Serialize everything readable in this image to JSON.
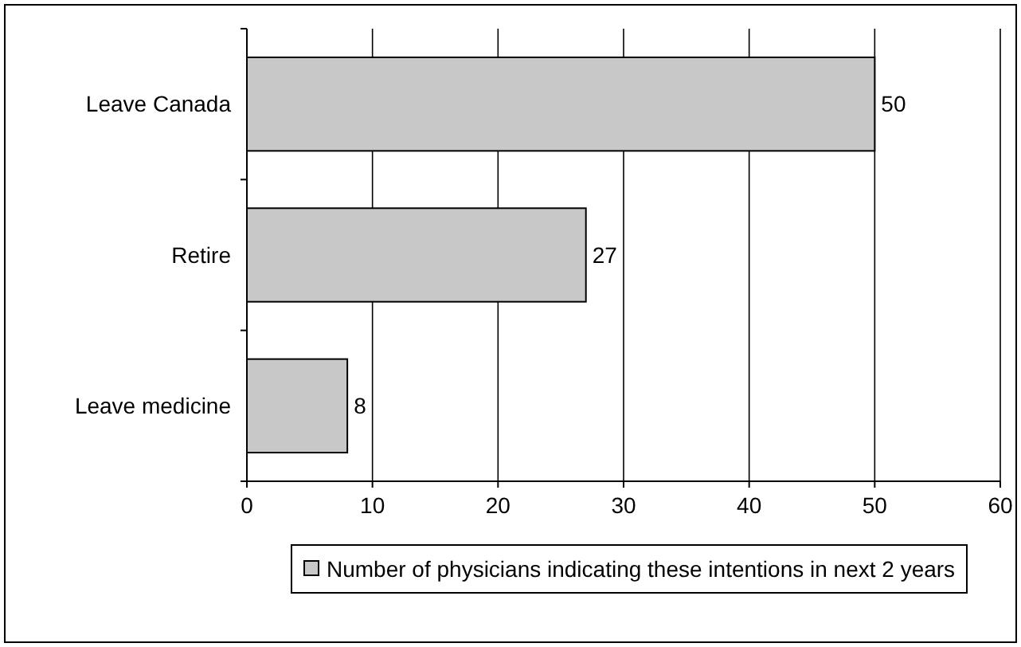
{
  "chart_data": {
    "type": "bar",
    "orientation": "horizontal",
    "categories": [
      "Leave Canada",
      "Retire",
      "Leave medicine"
    ],
    "series": [
      {
        "name": "Number of physicians indicating these intentions in next 2 years",
        "color": "#c8c8c8",
        "values": [
          50,
          27,
          8
        ]
      }
    ],
    "xlim": [
      0,
      60
    ],
    "xticks": [
      0,
      10,
      20,
      30,
      40,
      50,
      60
    ],
    "grid": "x",
    "legend": "bottom",
    "data_labels": true
  }
}
